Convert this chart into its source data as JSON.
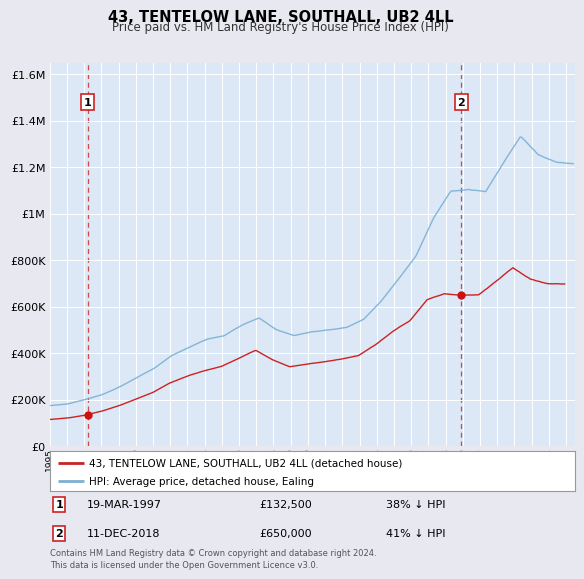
{
  "title": "43, TENTELOW LANE, SOUTHALL, UB2 4LL",
  "subtitle": "Price paid vs. HM Land Registry's House Price Index (HPI)",
  "legend_line1": "43, TENTELOW LANE, SOUTHALL, UB2 4LL (detached house)",
  "legend_line2": "HPI: Average price, detached house, Ealing",
  "annotation1_label": "1",
  "annotation1_date": "19-MAR-1997",
  "annotation1_price": "£132,500",
  "annotation1_hpi": "38% ↓ HPI",
  "annotation2_label": "2",
  "annotation2_date": "11-DEC-2018",
  "annotation2_price": "£650,000",
  "annotation2_hpi": "41% ↓ HPI",
  "footer": "Contains HM Land Registry data © Crown copyright and database right 2024.\nThis data is licensed under the Open Government Licence v3.0.",
  "sale1_year": 1997.21,
  "sale1_value": 132500,
  "sale2_year": 2018.92,
  "sale2_value": 650000,
  "hpi_color": "#7ab0d4",
  "price_color": "#cc2222",
  "sale_dot_color": "#cc1111",
  "vline_color": "#cc2222",
  "background_color": "#e8e8f0",
  "plot_bg_color": "#dce8f5",
  "ylim": [
    0,
    1600000
  ],
  "xlim_start": 1995.0,
  "xlim_end": 2025.5
}
